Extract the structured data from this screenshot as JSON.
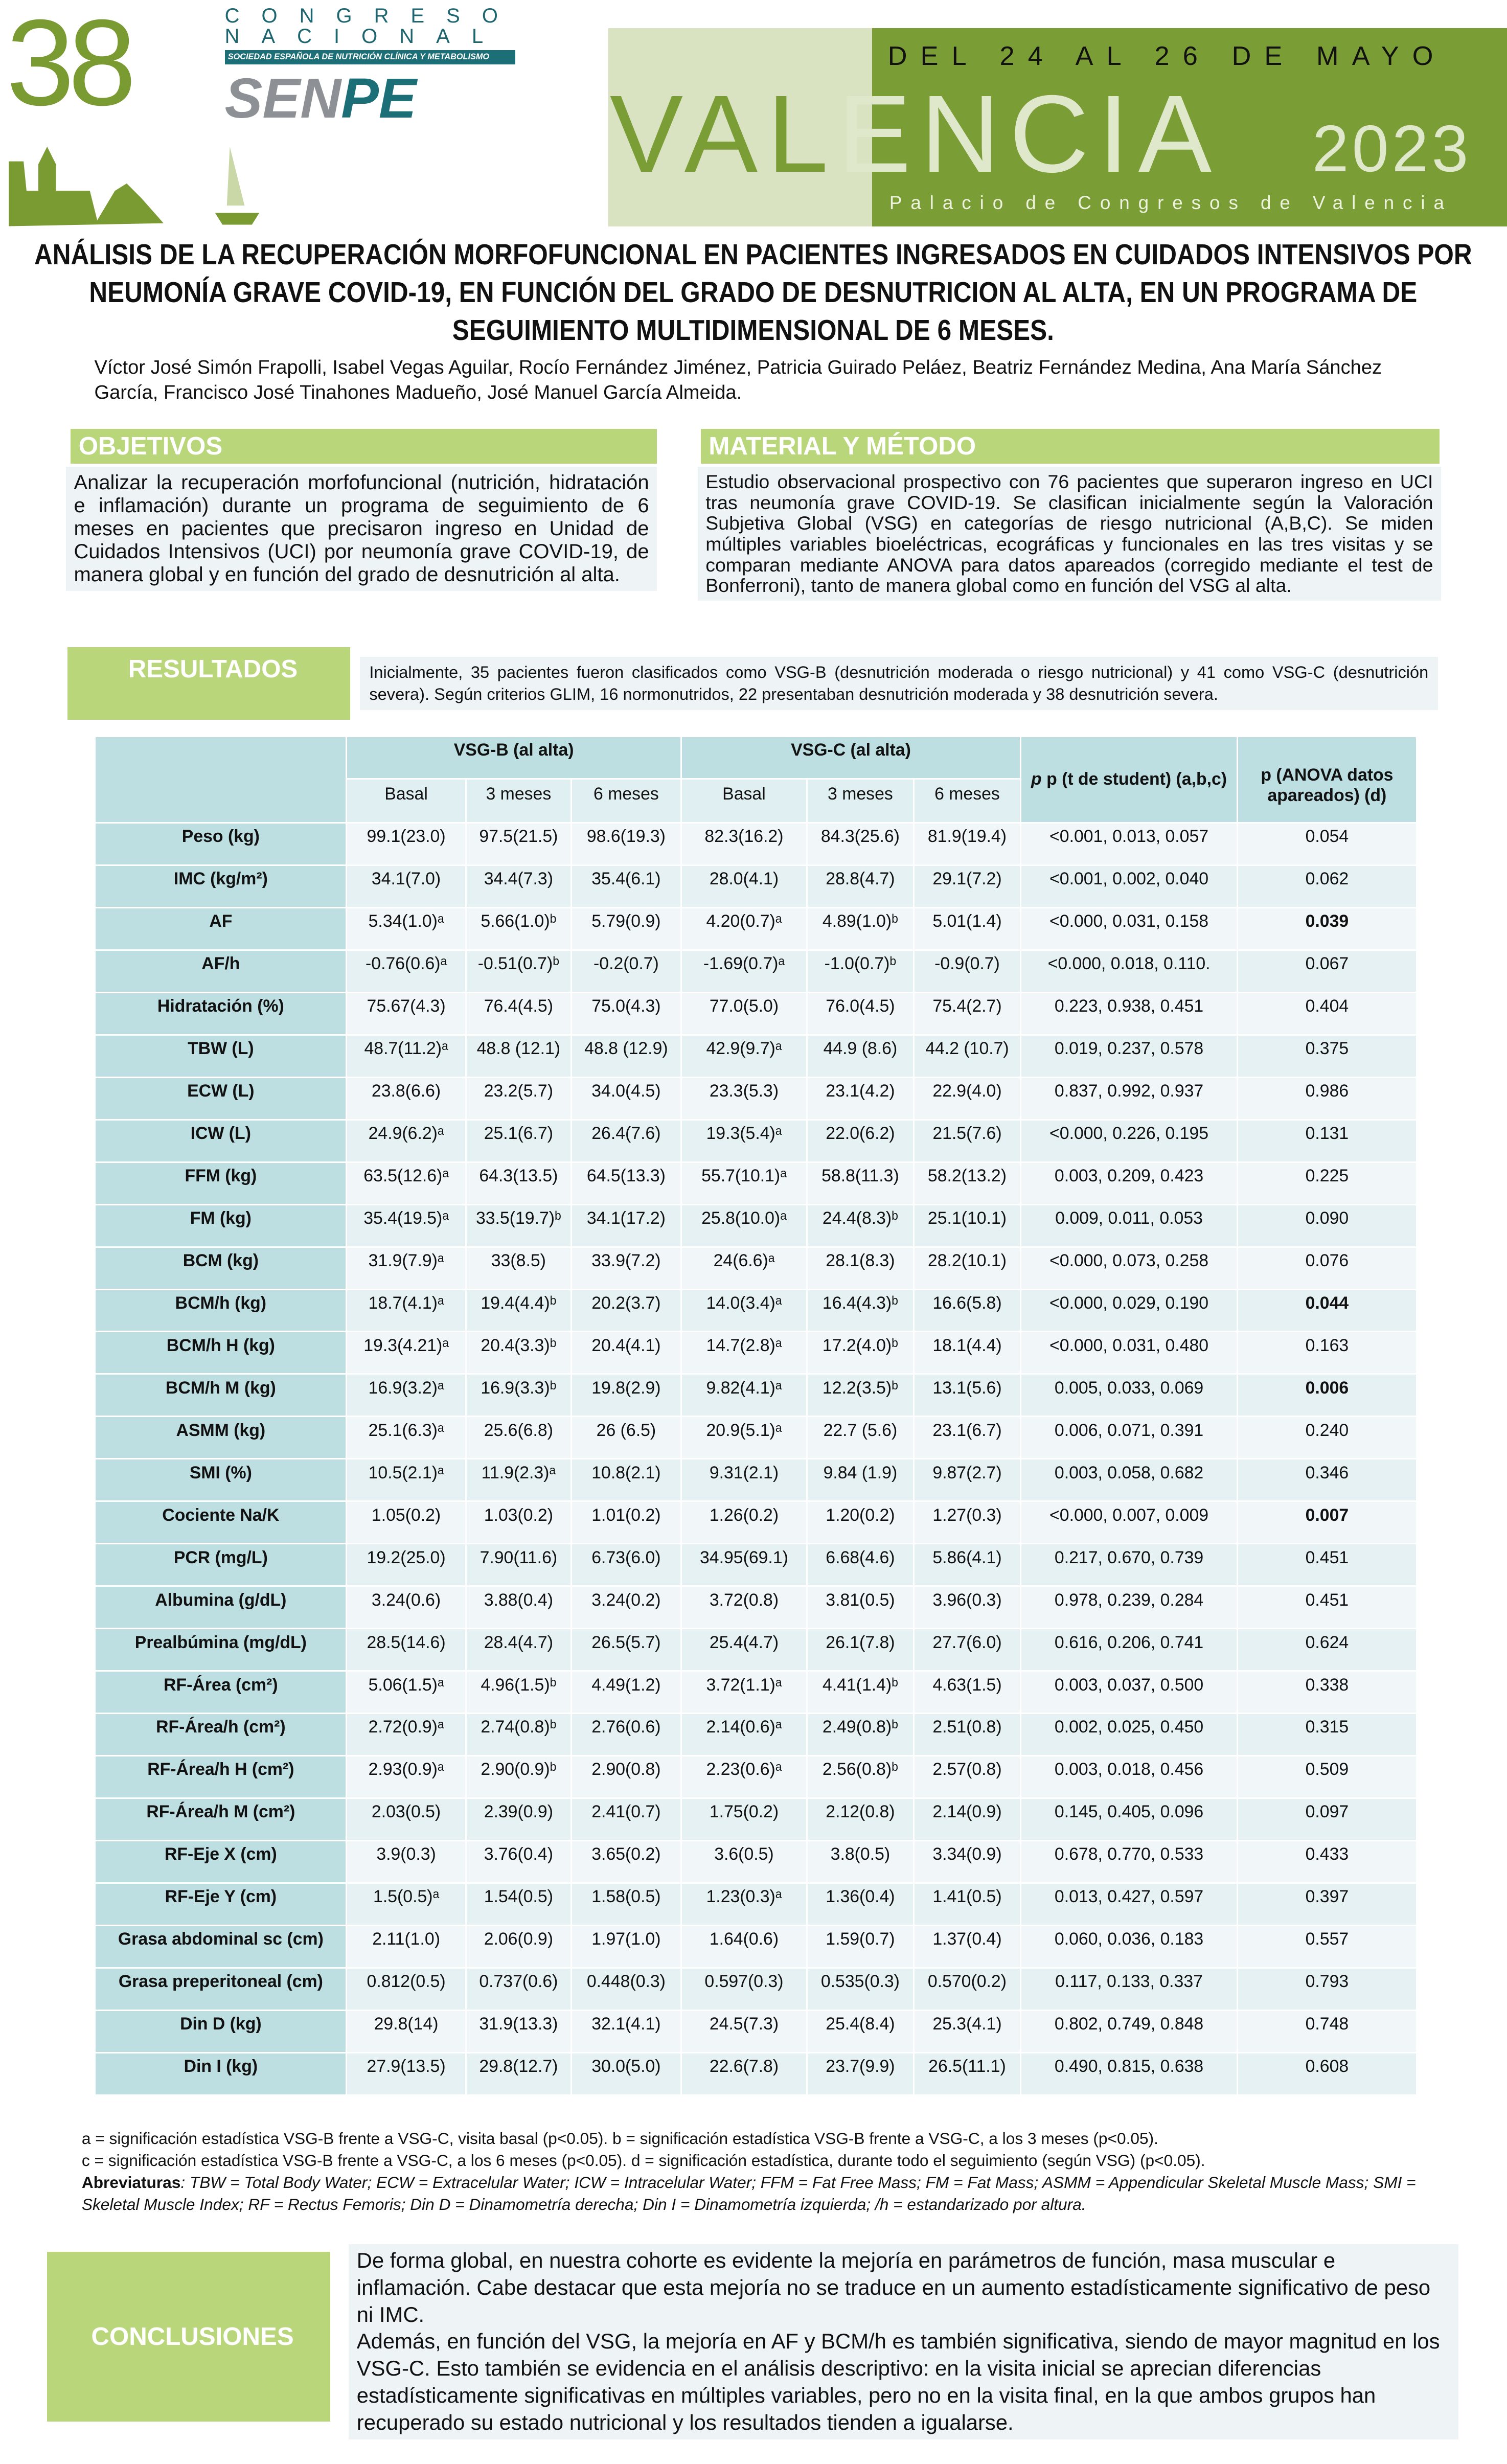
{
  "header": {
    "number": "38",
    "congreso": "CONGRESO",
    "nacional": "NACIONAL",
    "society": "SOCIEDAD ESPAÑOLA DE NUTRICIÓN CLÍNICA Y METABOLISMO",
    "senpe_a": "SEN",
    "senpe_b": "PE",
    "dates": "DEL 24 AL 26 DE MAYO",
    "city_a": "VAL",
    "city_b": "ENCIA",
    "year": "2023",
    "venue": "Palacio de Congresos de Valencia"
  },
  "title": "ANÁLISIS DE LA RECUPERACIÓN MORFOFUNCIONAL EN PACIENTES INGRESADOS EN CUIDADOS INTENSIVOS POR NEUMONÍA GRAVE COVID-19, EN FUNCIÓN DEL GRADO DE DESNUTRICION AL ALTA, EN UN PROGRAMA DE SEGUIMIENTO MULTIDIMENSIONAL DE 6 MESES.",
  "authors": "Víctor José Simón Frapolli, Isabel Vegas Aguilar, Rocío Fernández Jiménez, Patricia Guirado Peláez, Beatriz Fernández Medina, Ana María Sánchez García, Francisco José Tinahones Madueño, José Manuel García Almeida.",
  "objetivos": {
    "heading": "OBJETIVOS",
    "text": "Analizar la recuperación morfofuncional (nutrición, hidratación e inflamación) durante un programa de seguimiento de 6 meses en pacientes que precisaron ingreso en Unidad de Cuidados Intensivos (UCI) por neumonía grave COVID-19, de manera global y en función del grado de desnutrición al alta."
  },
  "metodo": {
    "heading": "MATERIAL Y MÉTODO",
    "text": "Estudio observacional prospectivo con 76 pacientes que superaron ingreso en UCI tras neumonía grave COVID-19. Se clasifican inicialmente según la Valoración Subjetiva Global (VSG) en categorías de riesgo nutricional (A,B,C). Se miden múltiples variables bioeléctricas, ecográficas y funcionales en las tres visitas y se comparan mediante ANOVA para datos apareados (corregido mediante el test de Bonferroni), tanto de manera global como en función del VSG al alta."
  },
  "resultados": {
    "heading": "RESULTADOS",
    "text": "Inicialmente, 35 pacientes fueron clasificados como VSG-B (desnutrición moderada o riesgo nutricional) y 41 como VSG-C (desnutrición severa). Según criterios GLIM, 16 normonutridos, 22 presentaban desnutrición moderada y 38 desnutrición severa."
  },
  "table": {
    "group_b": "VSG-B (al alta)",
    "group_c": "VSG-C (al alta)",
    "sub": [
      "Basal",
      "3 meses",
      "6 meses",
      "Basal",
      "3 meses",
      "6 meses"
    ],
    "p_student": "p (t de student) (a,b,c)",
    "p_anova": "p (ANOVA datos apareados) (d)",
    "rows": [
      {
        "label": "Peso (kg)",
        "v": [
          "99.1(23.0)",
          "97.5(21.5)",
          "98.6(19.3)",
          "82.3(16.2)",
          "84.3(25.6)",
          "81.9(19.4)"
        ],
        "p": "<0.001, 0.013, 0.057",
        "d": "0.054",
        "bold": false
      },
      {
        "label": "IMC (kg/m²)",
        "v": [
          "34.1(7.0)",
          "34.4(7.3)",
          "35.4(6.1)",
          "28.0(4.1)",
          "28.8(4.7)",
          "29.1(7.2)"
        ],
        "p": "<0.001, 0.002, 0.040",
        "d": "0.062",
        "bold": false
      },
      {
        "label": "AF",
        "v": [
          "5.34(1.0)ᵃ",
          "5.66(1.0)ᵇ",
          "5.79(0.9)",
          "4.20(0.7)ᵃ",
          "4.89(1.0)ᵇ",
          "5.01(1.4)"
        ],
        "p": "<0.000, 0.031, 0.158",
        "d": "0.039",
        "bold": true
      },
      {
        "label": "AF/h",
        "v": [
          "-0.76(0.6)ᵃ",
          "-0.51(0.7)ᵇ",
          "-0.2(0.7)",
          "-1.69(0.7)ᵃ",
          "-1.0(0.7)ᵇ",
          "-0.9(0.7)"
        ],
        "p": "<0.000, 0.018, 0.110.",
        "d": "0.067",
        "bold": false
      },
      {
        "label": "Hidratación (%)",
        "v": [
          "75.67(4.3)",
          "76.4(4.5)",
          "75.0(4.3)",
          "77.0(5.0)",
          "76.0(4.5)",
          "75.4(2.7)"
        ],
        "p": "0.223, 0.938, 0.451",
        "d": "0.404",
        "bold": false
      },
      {
        "label": "TBW (L)",
        "v": [
          "48.7(11.2)ᵃ",
          "48.8 (12.1)",
          "48.8 (12.9)",
          "42.9(9.7)ᵃ",
          "44.9 (8.6)",
          "44.2 (10.7)"
        ],
        "p": "0.019, 0.237, 0.578",
        "d": "0.375",
        "bold": false
      },
      {
        "label": "ECW (L)",
        "v": [
          "23.8(6.6)",
          "23.2(5.7)",
          "34.0(4.5)",
          "23.3(5.3)",
          "23.1(4.2)",
          "22.9(4.0)"
        ],
        "p": "0.837, 0.992, 0.937",
        "d": "0.986",
        "bold": false
      },
      {
        "label": "ICW (L)",
        "v": [
          "24.9(6.2)ᵃ",
          "25.1(6.7)",
          "26.4(7.6)",
          "19.3(5.4)ᵃ",
          "22.0(6.2)",
          "21.5(7.6)"
        ],
        "p": "<0.000, 0.226, 0.195",
        "d": "0.131",
        "bold": false
      },
      {
        "label": "FFM (kg)",
        "v": [
          "63.5(12.6)ᵃ",
          "64.3(13.5)",
          "64.5(13.3)",
          "55.7(10.1)ᵃ",
          "58.8(11.3)",
          "58.2(13.2)"
        ],
        "p": "0.003, 0.209, 0.423",
        "d": "0.225",
        "bold": false
      },
      {
        "label": "FM (kg)",
        "v": [
          "35.4(19.5)ᵃ",
          "33.5(19.7)ᵇ",
          "34.1(17.2)",
          "25.8(10.0)ᵃ",
          "24.4(8.3)ᵇ",
          "25.1(10.1)"
        ],
        "p": "0.009, 0.011, 0.053",
        "d": "0.090",
        "bold": false
      },
      {
        "label": "BCM (kg)",
        "v": [
          "31.9(7.9)ᵃ",
          "33(8.5)",
          "33.9(7.2)",
          "24(6.6)ᵃ",
          "28.1(8.3)",
          "28.2(10.1)"
        ],
        "p": "<0.000, 0.073, 0.258",
        "d": "0.076",
        "bold": false
      },
      {
        "label": "BCM/h (kg)",
        "v": [
          "18.7(4.1)ᵃ",
          "19.4(4.4)ᵇ",
          "20.2(3.7)",
          "14.0(3.4)ᵃ",
          "16.4(4.3)ᵇ",
          "16.6(5.8)"
        ],
        "p": "<0.000, 0.029, 0.190",
        "d": "0.044",
        "bold": true
      },
      {
        "label": "BCM/h H (kg)",
        "v": [
          "19.3(4.21)ᵃ",
          "20.4(3.3)ᵇ",
          "20.4(4.1)",
          "14.7(2.8)ᵃ",
          "17.2(4.0)ᵇ",
          "18.1(4.4)"
        ],
        "p": "<0.000, 0.031, 0.480",
        "d": "0.163",
        "bold": false
      },
      {
        "label": "BCM/h M (kg)",
        "v": [
          "16.9(3.2)ᵃ",
          "16.9(3.3)ᵇ",
          "19.8(2.9)",
          "9.82(4.1)ᵃ",
          "12.2(3.5)ᵇ",
          "13.1(5.6)"
        ],
        "p": "0.005, 0.033, 0.069",
        "d": "0.006",
        "bold": true
      },
      {
        "label": "ASMM (kg)",
        "v": [
          "25.1(6.3)ᵃ",
          "25.6(6.8)",
          "26 (6.5)",
          "20.9(5.1)ᵃ",
          "22.7 (5.6)",
          "23.1(6.7)"
        ],
        "p": "0.006, 0.071, 0.391",
        "d": "0.240",
        "bold": false
      },
      {
        "label": "SMI (%)",
        "v": [
          "10.5(2.1)ᵃ",
          "11.9(2.3)ᵃ",
          "10.8(2.1)",
          "9.31(2.1)",
          "9.84 (1.9)",
          "9.87(2.7)"
        ],
        "p": "0.003, 0.058, 0.682",
        "d": "0.346",
        "bold": false
      },
      {
        "label": "Cociente Na/K",
        "v": [
          "1.05(0.2)",
          "1.03(0.2)",
          "1.01(0.2)",
          "1.26(0.2)",
          "1.20(0.2)",
          "1.27(0.3)"
        ],
        "p": "<0.000, 0.007, 0.009",
        "d": "0.007",
        "bold": true
      },
      {
        "label": "PCR (mg/L)",
        "v": [
          "19.2(25.0)",
          "7.90(11.6)",
          "6.73(6.0)",
          "34.95(69.1)",
          "6.68(4.6)",
          "5.86(4.1)"
        ],
        "p": "0.217, 0.670, 0.739",
        "d": "0.451",
        "bold": false
      },
      {
        "label": "Albumina (g/dL)",
        "v": [
          "3.24(0.6)",
          "3.88(0.4)",
          "3.24(0.2)",
          "3.72(0.8)",
          "3.81(0.5)",
          "3.96(0.3)"
        ],
        "p": "0.978, 0.239, 0.284",
        "d": "0.451",
        "bold": false
      },
      {
        "label": "Prealbúmina (mg/dL)",
        "v": [
          "28.5(14.6)",
          "28.4(4.7)",
          "26.5(5.7)",
          "25.4(4.7)",
          "26.1(7.8)",
          "27.7(6.0)"
        ],
        "p": "0.616, 0.206, 0.741",
        "d": "0.624",
        "bold": false
      },
      {
        "label": "RF-Área (cm²)",
        "v": [
          "5.06(1.5)ᵃ",
          "4.96(1.5)ᵇ",
          "4.49(1.2)",
          "3.72(1.1)ᵃ",
          "4.41(1.4)ᵇ",
          "4.63(1.5)"
        ],
        "p": "0.003, 0.037, 0.500",
        "d": "0.338",
        "bold": false
      },
      {
        "label": "RF-Área/h (cm²)",
        "v": [
          "2.72(0.9)ᵃ",
          "2.74(0.8)ᵇ",
          "2.76(0.6)",
          "2.14(0.6)ᵃ",
          "2.49(0.8)ᵇ",
          "2.51(0.8)"
        ],
        "p": "0.002, 0.025, 0.450",
        "d": "0.315",
        "bold": false
      },
      {
        "label": "RF-Área/h H (cm²)",
        "v": [
          "2.93(0.9)ᵃ",
          "2.90(0.9)ᵇ",
          "2.90(0.8)",
          "2.23(0.6)ᵃ",
          "2.56(0.8)ᵇ",
          "2.57(0.8)"
        ],
        "p": "0.003, 0.018, 0.456",
        "d": "0.509",
        "bold": false
      },
      {
        "label": "RF-Área/h M (cm²)",
        "v": [
          "2.03(0.5)",
          "2.39(0.9)",
          "2.41(0.7)",
          "1.75(0.2)",
          "2.12(0.8)",
          "2.14(0.9)"
        ],
        "p": "0.145, 0.405, 0.096",
        "d": "0.097",
        "bold": false
      },
      {
        "label": "RF-Eje X (cm)",
        "v": [
          "3.9(0.3)",
          "3.76(0.4)",
          "3.65(0.2)",
          "3.6(0.5)",
          "3.8(0.5)",
          "3.34(0.9)"
        ],
        "p": "0.678, 0.770, 0.533",
        "d": "0.433",
        "bold": false
      },
      {
        "label": "RF-Eje Y (cm)",
        "v": [
          "1.5(0.5)ᵃ",
          "1.54(0.5)",
          "1.58(0.5)",
          "1.23(0.3)ᵃ",
          "1.36(0.4)",
          "1.41(0.5)"
        ],
        "p": "0.013, 0.427, 0.597",
        "d": "0.397",
        "bold": false
      },
      {
        "label": "Grasa abdominal sc (cm)",
        "v": [
          "2.11(1.0)",
          "2.06(0.9)",
          "1.97(1.0)",
          "1.64(0.6)",
          "1.59(0.7)",
          "1.37(0.4)"
        ],
        "p": "0.060, 0.036, 0.183",
        "d": "0.557",
        "bold": false
      },
      {
        "label": "Grasa preperitoneal (cm)",
        "v": [
          "0.812(0.5)",
          "0.737(0.6)",
          "0.448(0.3)",
          "0.597(0.3)",
          "0.535(0.3)",
          "0.570(0.2)"
        ],
        "p": "0.117, 0.133, 0.337",
        "d": "0.793",
        "bold": false
      },
      {
        "label": "Din D (kg)",
        "v": [
          "29.8(14)",
          "31.9(13.3)",
          "32.1(4.1)",
          "24.5(7.3)",
          "25.4(8.4)",
          "25.3(4.1)"
        ],
        "p": "0.802, 0.749, 0.848",
        "d": "0.748",
        "bold": false
      },
      {
        "label": "Din I (kg)",
        "v": [
          "27.9(13.5)",
          "29.8(12.7)",
          "30.0(5.0)",
          "22.6(7.8)",
          "23.7(9.9)",
          "26.5(11.1)"
        ],
        "p": "0.490, 0.815, 0.638",
        "d": "0.608",
        "bold": false
      }
    ]
  },
  "notes": {
    "line1": "a = significación estadística VSG-B frente a VSG-C, visita basal (p<0.05). b = significación estadística VSG-B frente a VSG-C, a los 3 meses (p<0.05).",
    "line2": "c = significación estadística VSG-B frente a VSG-C, a los 6 meses (p<0.05). d = significación estadística, durante todo el seguimiento (según VSG) (p<0.05).",
    "abbr_label": "Abreviaturas",
    "abbr": ": TBW = Total Body Water; ECW = Extracelular Water; ICW = Intracelular Water; FFM = Fat Free Mass; FM = Fat Mass; ASMM = Appendicular Skeletal Muscle Mass; SMI = Skeletal Muscle Index; RF = Rectus Femoris; Din D = Dinamometría derecha; Din I = Dinamometría izquierda; /h = estandarizado por altura."
  },
  "conclusiones": {
    "heading": "CONCLUSIONES",
    "p1": "De forma global, en nuestra cohorte es evidente la mejoría en parámetros de función, masa muscular e inflamación. Cabe destacar que esta mejoría no se traduce en un aumento estadísticamente significativo de peso ni IMC.",
    "p2": "Además, en función del VSG, la mejoría en AF y BCM/h es también significativa, siendo de mayor magnitud en los VSG-C. Esto también se evidencia en el análisis descriptivo: en la visita inicial se aprecian diferencias estadísticamente significativas en múltiples variables, pero no en la visita final, en la que ambos grupos han recuperado su estado nutricional y los resultados tienden a igualarse."
  }
}
